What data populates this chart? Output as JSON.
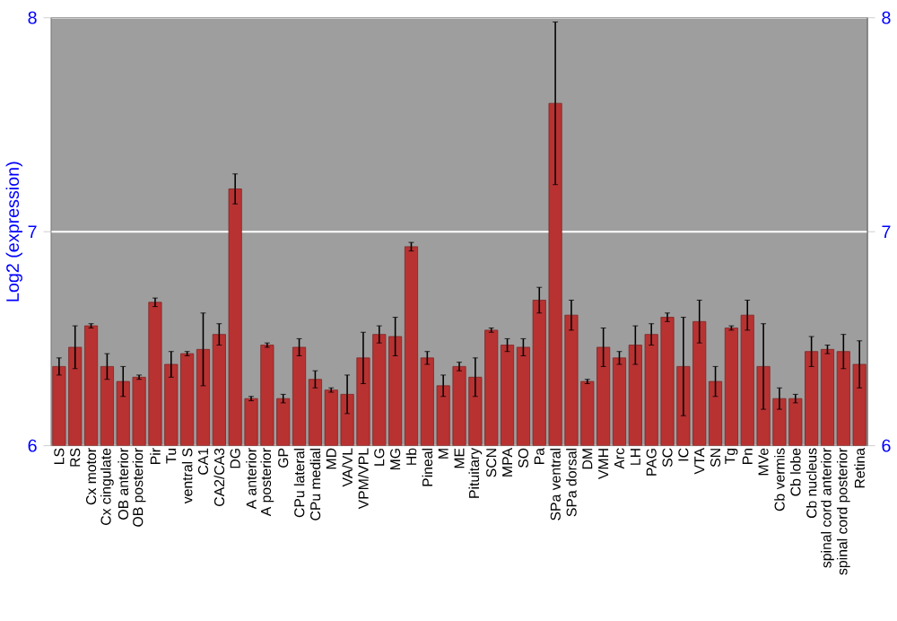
{
  "chart_data": {
    "type": "bar",
    "ylabel": "Log2 (expression)",
    "categories": [
      "LS",
      "RS",
      "Cx motor",
      "Cx cingulate",
      "OB anterior",
      "OB posterior",
      "Pir",
      "Tu",
      "ventral S",
      "CA1",
      "CA2/CA3",
      "DG",
      "A anterior",
      "A posterior",
      "GP",
      "CPu lateral",
      "CPu medial",
      "MD",
      "VA/VL",
      "VPM/VPL",
      "LG",
      "MG",
      "Hb",
      "Pineal",
      "M",
      "ME",
      "Pituitary",
      "SCN",
      "MPA",
      "SO",
      "Pa",
      "SPa ventral",
      "SPa dorsal",
      "DM",
      "VMH",
      "Arc",
      "LH",
      "PAG",
      "SC",
      "IC",
      "VTA",
      "SN",
      "Tg",
      "Pn",
      "MVe",
      "Cb vermis",
      "Cb lobe",
      "Cb nucleus",
      "spinal cord anterior",
      "spinal cord posterior",
      "Retina"
    ],
    "values": [
      6.37,
      6.46,
      6.56,
      6.37,
      6.3,
      6.32,
      6.67,
      6.38,
      6.43,
      6.45,
      6.52,
      7.2,
      6.22,
      6.47,
      6.22,
      6.46,
      6.31,
      6.26,
      6.24,
      6.41,
      6.52,
      6.51,
      6.93,
      6.41,
      6.28,
      6.37,
      6.32,
      6.54,
      6.47,
      6.46,
      6.68,
      7.6,
      6.61,
      6.3,
      6.46,
      6.41,
      6.47,
      6.52,
      6.6,
      6.37,
      6.58,
      6.3,
      6.55,
      6.61,
      6.37,
      6.22,
      6.22,
      6.44,
      6.45,
      6.44,
      6.38
    ],
    "errors": [
      0.04,
      0.1,
      0.01,
      0.06,
      0.07,
      0.01,
      0.02,
      0.06,
      0.01,
      0.17,
      0.05,
      0.07,
      0.01,
      0.01,
      0.02,
      0.04,
      0.04,
      0.01,
      0.09,
      0.12,
      0.04,
      0.09,
      0.02,
      0.03,
      0.05,
      0.02,
      0.09,
      0.01,
      0.03,
      0.04,
      0.06,
      0.38,
      0.07,
      0.01,
      0.09,
      0.03,
      0.09,
      0.05,
      0.02,
      0.23,
      0.1,
      0.07,
      0.01,
      0.07,
      0.2,
      0.05,
      0.02,
      0.07,
      0.02,
      0.08,
      0.11
    ],
    "color": "#b83232",
    "ylim": [
      6,
      8
    ],
    "yticks": [
      6,
      7,
      8
    ],
    "y2lim": [
      6,
      8
    ],
    "y2ticks": [
      6,
      7,
      8
    ],
    "grid": "y"
  }
}
